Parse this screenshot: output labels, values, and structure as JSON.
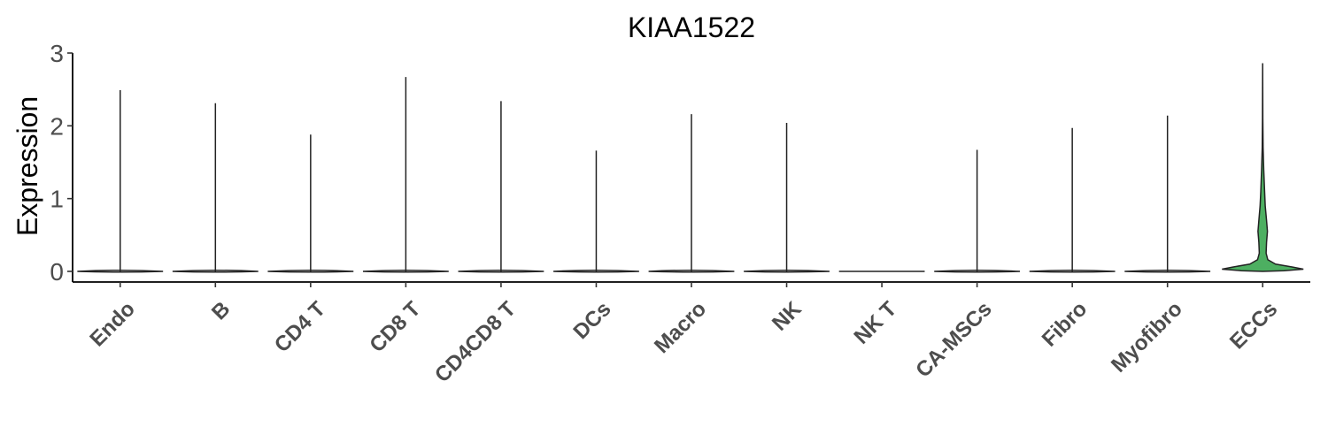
{
  "chart_data": {
    "type": "violin",
    "title": "KIAA1522",
    "xlabel": "",
    "ylabel": "Expression",
    "ylim": [
      0,
      3
    ],
    "yticks": [
      "0",
      "1",
      "2",
      "3"
    ],
    "grid": false,
    "legend": "none",
    "categories": [
      "Endo",
      "B",
      "CD4 T",
      "CD8 T",
      "CD4CD8 T",
      "DCs",
      "Macro",
      "NK",
      "NK T",
      "CA-MSCs",
      "Fibro",
      "Myofibro",
      "ECCs"
    ],
    "max_values": [
      2.49,
      2.31,
      1.88,
      2.67,
      2.34,
      1.66,
      2.16,
      2.04,
      0,
      1.67,
      1.97,
      2.14,
      2.86
    ],
    "highlight_category": "ECCs",
    "highlight_color": "#4daf61",
    "default_fill": "#ffffff",
    "outline_color": "#222222"
  }
}
